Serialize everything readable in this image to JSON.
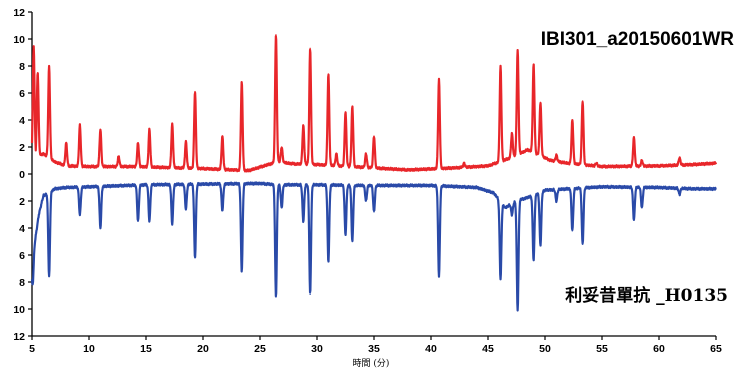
{
  "chart_data": {
    "type": "line",
    "title": "",
    "xlabel": "時間 (分)",
    "ylabel": "",
    "xlim": [
      5,
      65
    ],
    "ylim_display": [
      -12,
      12
    ],
    "x_ticks": [
      5,
      10,
      15,
      20,
      25,
      30,
      35,
      40,
      45,
      50,
      55,
      60,
      65
    ],
    "y_tick_values": [
      12,
      10,
      8,
      6,
      4,
      2,
      0,
      -2,
      -4,
      -6,
      -8,
      -10,
      -12
    ],
    "y_tick_labels": [
      "12",
      "10",
      "8",
      "6",
      "4",
      "2",
      "0",
      "2",
      "4",
      "6",
      "8",
      "10",
      "12"
    ],
    "mirror": true,
    "colors": {
      "top": "#e8262a",
      "bottom": "#2a4aa8",
      "axis": "#000000"
    },
    "series": [
      {
        "name": "IBI301_a20150601WR",
        "orientation": "up",
        "color": "#e8262a",
        "baseline": [
          [
            5.0,
            1.2
          ],
          [
            6.0,
            1.5
          ],
          [
            7.0,
            0.9
          ],
          [
            8.0,
            0.6
          ],
          [
            10.0,
            0.55
          ],
          [
            14.0,
            0.55
          ],
          [
            20.0,
            0.4
          ],
          [
            24.0,
            0.25
          ],
          [
            26.5,
            0.9
          ],
          [
            28.0,
            0.75
          ],
          [
            30.0,
            0.7
          ],
          [
            35.0,
            0.45
          ],
          [
            38.0,
            0.3
          ],
          [
            42.0,
            0.45
          ],
          [
            45.0,
            0.6
          ],
          [
            47.0,
            1.2
          ],
          [
            48.5,
            1.8
          ],
          [
            50.5,
            1.0
          ],
          [
            52.0,
            0.8
          ],
          [
            55.0,
            0.55
          ],
          [
            60.0,
            0.6
          ],
          [
            63.0,
            0.7
          ],
          [
            65.0,
            0.8
          ]
        ],
        "peaks": [
          {
            "x": 5.15,
            "y": 9.4
          },
          {
            "x": 5.5,
            "y": 7.5
          },
          {
            "x": 6.5,
            "y": 8.0
          },
          {
            "x": 8.0,
            "y": 2.3
          },
          {
            "x": 9.2,
            "y": 3.6
          },
          {
            "x": 11.0,
            "y": 3.3
          },
          {
            "x": 12.6,
            "y": 1.3
          },
          {
            "x": 14.3,
            "y": 2.3
          },
          {
            "x": 15.3,
            "y": 3.3
          },
          {
            "x": 17.3,
            "y": 3.7
          },
          {
            "x": 18.5,
            "y": 2.4
          },
          {
            "x": 19.3,
            "y": 6.1
          },
          {
            "x": 21.7,
            "y": 2.8
          },
          {
            "x": 23.4,
            "y": 6.8
          },
          {
            "x": 26.4,
            "y": 10.3
          },
          {
            "x": 26.9,
            "y": 2.0
          },
          {
            "x": 28.8,
            "y": 3.6
          },
          {
            "x": 29.4,
            "y": 9.3
          },
          {
            "x": 31.0,
            "y": 7.4
          },
          {
            "x": 31.7,
            "y": 1.5
          },
          {
            "x": 32.5,
            "y": 4.6
          },
          {
            "x": 33.1,
            "y": 5.0
          },
          {
            "x": 34.3,
            "y": 1.5
          },
          {
            "x": 35.0,
            "y": 2.8
          },
          {
            "x": 40.7,
            "y": 7.0
          },
          {
            "x": 42.9,
            "y": 0.8
          },
          {
            "x": 46.1,
            "y": 8.0
          },
          {
            "x": 47.1,
            "y": 3.0
          },
          {
            "x": 47.6,
            "y": 9.2
          },
          {
            "x": 49.0,
            "y": 8.1
          },
          {
            "x": 49.6,
            "y": 5.3
          },
          {
            "x": 51.0,
            "y": 1.4
          },
          {
            "x": 52.4,
            "y": 4.0
          },
          {
            "x": 53.3,
            "y": 5.4
          },
          {
            "x": 54.5,
            "y": 0.8
          },
          {
            "x": 57.8,
            "y": 2.7
          },
          {
            "x": 58.5,
            "y": 1.0
          },
          {
            "x": 61.8,
            "y": 1.2
          }
        ]
      },
      {
        "name": "利妥昔單抗 _H0135",
        "orientation": "down",
        "color": "#2a4aa8",
        "baseline": [
          [
            5.0,
            6.5
          ],
          [
            5.6,
            3.0
          ],
          [
            6.0,
            1.6
          ],
          [
            7.0,
            1.1
          ],
          [
            8.0,
            1.0
          ],
          [
            10.0,
            0.95
          ],
          [
            15.0,
            0.8
          ],
          [
            20.0,
            0.75
          ],
          [
            25.0,
            0.7
          ],
          [
            26.5,
            0.8
          ],
          [
            30.0,
            0.8
          ],
          [
            34.0,
            0.85
          ],
          [
            37.0,
            0.85
          ],
          [
            40.0,
            0.85
          ],
          [
            44.0,
            1.0
          ],
          [
            45.5,
            1.4
          ],
          [
            46.5,
            2.5
          ],
          [
            47.5,
            2.0
          ],
          [
            49.0,
            1.6
          ],
          [
            50.0,
            1.2
          ],
          [
            55.0,
            0.95
          ],
          [
            60.0,
            1.0
          ],
          [
            63.0,
            1.1
          ],
          [
            65.0,
            1.1
          ]
        ],
        "peaks": [
          {
            "x": 5.05,
            "y": 8.2
          },
          {
            "x": 6.5,
            "y": 7.6
          },
          {
            "x": 9.2,
            "y": 3.0
          },
          {
            "x": 11.0,
            "y": 4.0
          },
          {
            "x": 14.3,
            "y": 3.5
          },
          {
            "x": 15.3,
            "y": 3.5
          },
          {
            "x": 17.3,
            "y": 3.7
          },
          {
            "x": 18.5,
            "y": 2.6
          },
          {
            "x": 19.3,
            "y": 6.2
          },
          {
            "x": 21.7,
            "y": 2.7
          },
          {
            "x": 23.4,
            "y": 7.2
          },
          {
            "x": 26.4,
            "y": 9.1
          },
          {
            "x": 26.9,
            "y": 2.5
          },
          {
            "x": 28.8,
            "y": 3.5
          },
          {
            "x": 29.4,
            "y": 8.9
          },
          {
            "x": 31.0,
            "y": 6.5
          },
          {
            "x": 32.5,
            "y": 4.5
          },
          {
            "x": 33.1,
            "y": 5.0
          },
          {
            "x": 34.3,
            "y": 2.0
          },
          {
            "x": 35.0,
            "y": 2.8
          },
          {
            "x": 40.7,
            "y": 7.6
          },
          {
            "x": 46.1,
            "y": 7.8
          },
          {
            "x": 47.1,
            "y": 3.0
          },
          {
            "x": 47.6,
            "y": 10.1
          },
          {
            "x": 49.0,
            "y": 6.4
          },
          {
            "x": 49.6,
            "y": 5.3
          },
          {
            "x": 51.0,
            "y": 2.0
          },
          {
            "x": 52.4,
            "y": 4.2
          },
          {
            "x": 53.3,
            "y": 5.2
          },
          {
            "x": 57.8,
            "y": 3.4
          },
          {
            "x": 58.5,
            "y": 2.5
          },
          {
            "x": 61.8,
            "y": 1.5
          }
        ]
      }
    ]
  }
}
